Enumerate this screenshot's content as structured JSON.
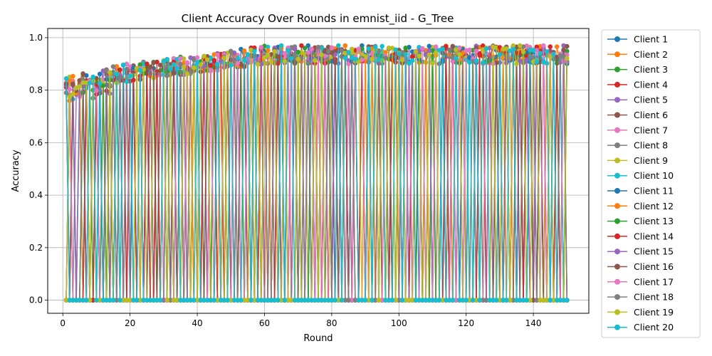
{
  "chart_data": {
    "type": "line",
    "title": "Client Accuracy Over Rounds in emnist_iid - G_Tree",
    "xlabel": "Round",
    "ylabel": "Accuracy",
    "xlim": [
      -4.5,
      156.5
    ],
    "ylim": [
      -0.05,
      1.035
    ],
    "xticks": [
      0,
      20,
      40,
      60,
      80,
      100,
      120,
      140
    ],
    "yticks": [
      0.0,
      0.2,
      0.4,
      0.6,
      0.8,
      1.0
    ],
    "ytick_labels": [
      "0.0",
      "0.2",
      "0.4",
      "0.6",
      "0.8",
      "1.0"
    ],
    "grid": true,
    "legend_position": "outside-right",
    "rounds": [
      1,
      150
    ],
    "series": [
      {
        "name": "Client 1",
        "color": "#1f77b4"
      },
      {
        "name": "Client 2",
        "color": "#ff7f0e"
      },
      {
        "name": "Client 3",
        "color": "#2ca02c"
      },
      {
        "name": "Client 4",
        "color": "#d62728"
      },
      {
        "name": "Client 5",
        "color": "#9467bd"
      },
      {
        "name": "Client 6",
        "color": "#8c564b"
      },
      {
        "name": "Client 7",
        "color": "#e377c2"
      },
      {
        "name": "Client 8",
        "color": "#7f7f7f"
      },
      {
        "name": "Client 9",
        "color": "#bcbd22"
      },
      {
        "name": "Client 10",
        "color": "#17becf"
      },
      {
        "name": "Client 11",
        "color": "#1f77b4"
      },
      {
        "name": "Client 12",
        "color": "#ff7f0e"
      },
      {
        "name": "Client 13",
        "color": "#2ca02c"
      },
      {
        "name": "Client 14",
        "color": "#d62728"
      },
      {
        "name": "Client 15",
        "color": "#9467bd"
      },
      {
        "name": "Client 16",
        "color": "#8c564b"
      },
      {
        "name": "Client 17",
        "color": "#e377c2"
      },
      {
        "name": "Client 18",
        "color": "#7f7f7f"
      },
      {
        "name": "Client 19",
        "color": "#bcbd22"
      },
      {
        "name": "Client 20",
        "color": "#17becf"
      }
    ],
    "pattern": {
      "active_accuracy_start": 0.87,
      "active_accuracy_end": 0.97,
      "inactive_accuracy": 0.0
    }
  }
}
